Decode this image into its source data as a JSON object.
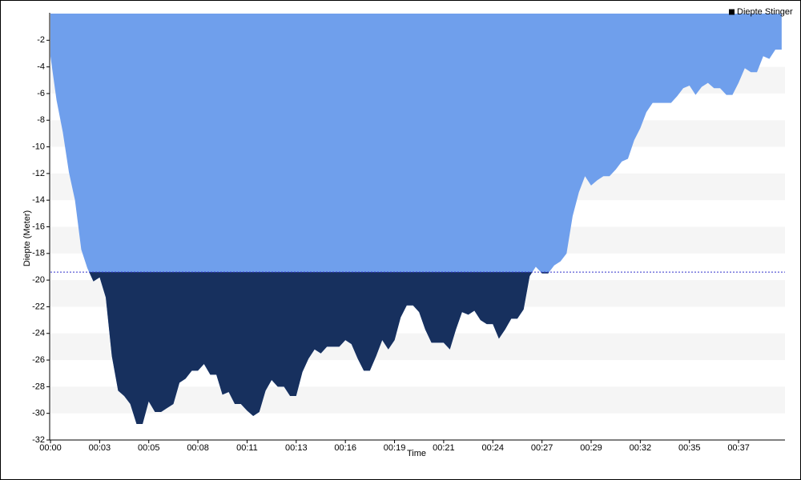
{
  "chart_data": {
    "type": "area",
    "x_label": "Time",
    "y_label": "Diepte (Meter)",
    "x": [
      0,
      0.33,
      0.67,
      1,
      1.33,
      1.67,
      2,
      2.33,
      2.67,
      3,
      3.33,
      3.67,
      4,
      4.33,
      4.67,
      5,
      5.33,
      5.67,
      6,
      6.33,
      6.67,
      7,
      7.33,
      7.67,
      8,
      8.33,
      8.67,
      9,
      9.33,
      9.67,
      10,
      10.33,
      10.67,
      11,
      11.33,
      11.67,
      12,
      12.33,
      12.67,
      13,
      13.33,
      13.67,
      14,
      14.33,
      14.67,
      15,
      15.33,
      15.67,
      16,
      16.33,
      16.67,
      17,
      17.33,
      17.67,
      18,
      18.33,
      18.67,
      19,
      19.33,
      19.67,
      20,
      20.33,
      20.67,
      21,
      21.33,
      21.67,
      22,
      22.33,
      22.67,
      23,
      23.33,
      23.67,
      24,
      24.33,
      24.67,
      25,
      25.33,
      25.67,
      26,
      26.33,
      26.67,
      27,
      27.33,
      27.67,
      28,
      28.33,
      28.67,
      29,
      29.33,
      29.67,
      30,
      30.33,
      30.67,
      31,
      31.33,
      31.67,
      32,
      32.33,
      32.67,
      33,
      33.33,
      33.67,
      34,
      34.33,
      34.67,
      35,
      35.33,
      35.67,
      36,
      36.33,
      36.67,
      37,
      37.33,
      37.67,
      38,
      38.33,
      38.67,
      39,
      39.33,
      39.67
    ],
    "series": [
      {
        "name": "Diepte Stinger",
        "color": "#6f9fec",
        "below_color": "#17305e",
        "values": [
          -3.2,
          -6.5,
          -8.9,
          -11.9,
          -14.0,
          -17.7,
          -19.1,
          -20.1,
          -19.8,
          -21.3,
          -25.7,
          -28.3,
          -28.7,
          -29.3,
          -30.8,
          -30.8,
          -29.1,
          -29.9,
          -29.9,
          -29.6,
          -29.3,
          -27.7,
          -27.4,
          -26.8,
          -26.8,
          -26.3,
          -27.1,
          -27.1,
          -28.6,
          -28.4,
          -29.3,
          -29.3,
          -29.8,
          -30.2,
          -29.9,
          -28.3,
          -27.5,
          -28.0,
          -28.0,
          -28.7,
          -28.7,
          -26.9,
          -25.9,
          -25.2,
          -25.5,
          -25.0,
          -25.0,
          -25.0,
          -24.5,
          -24.8,
          -25.9,
          -26.8,
          -26.8,
          -25.7,
          -24.5,
          -25.2,
          -24.5,
          -22.8,
          -21.9,
          -21.9,
          -22.4,
          -23.7,
          -24.7,
          -24.7,
          -24.7,
          -25.2,
          -23.7,
          -22.4,
          -22.6,
          -22.3,
          -23.0,
          -23.3,
          -23.3,
          -24.4,
          -23.7,
          -22.9,
          -22.9,
          -22.2,
          -19.7,
          -19.0,
          -19.5,
          -19.5,
          -18.9,
          -18.6,
          -18.0,
          -15.2,
          -13.4,
          -12.2,
          -12.9,
          -12.5,
          -12.2,
          -12.2,
          -11.7,
          -11.1,
          -10.9,
          -9.5,
          -8.6,
          -7.4,
          -6.7,
          -6.7,
          -6.7,
          -6.7,
          -6.2,
          -5.6,
          -5.4,
          -6.1,
          -5.5,
          -5.2,
          -5.6,
          -5.6,
          -6.1,
          -6.1,
          -5.2,
          -4.1,
          -4.4,
          -4.4,
          -3.2,
          -3.4,
          -2.7,
          -2.7
        ]
      }
    ],
    "threshold": -19.4,
    "threshold_color": "#3333cc",
    "xlim": [
      0,
      39.85
    ],
    "ylim": [
      -32,
      0
    ],
    "xticks": [
      {
        "value": 0,
        "label": "00:00"
      },
      {
        "value": 2.667,
        "label": "00:03"
      },
      {
        "value": 5.333,
        "label": "00:05"
      },
      {
        "value": 8,
        "label": "00:08"
      },
      {
        "value": 10.667,
        "label": "00:11"
      },
      {
        "value": 13.333,
        "label": "00:13"
      },
      {
        "value": 16,
        "label": "00:16"
      },
      {
        "value": 18.667,
        "label": "00:19"
      },
      {
        "value": 21.333,
        "label": "00:21"
      },
      {
        "value": 24,
        "label": "00:24"
      },
      {
        "value": 26.667,
        "label": "00:27"
      },
      {
        "value": 29.333,
        "label": "00:29"
      },
      {
        "value": 32,
        "label": "00:32"
      },
      {
        "value": 34.667,
        "label": "00:35"
      },
      {
        "value": 37.333,
        "label": "00:37"
      }
    ],
    "yticks": [
      -32,
      -30,
      -28,
      -26,
      -24,
      -22,
      -20,
      -18,
      -16,
      -14,
      -12,
      -10,
      -8,
      -6,
      -4,
      -2
    ],
    "grid": true,
    "legend": "top-right"
  }
}
